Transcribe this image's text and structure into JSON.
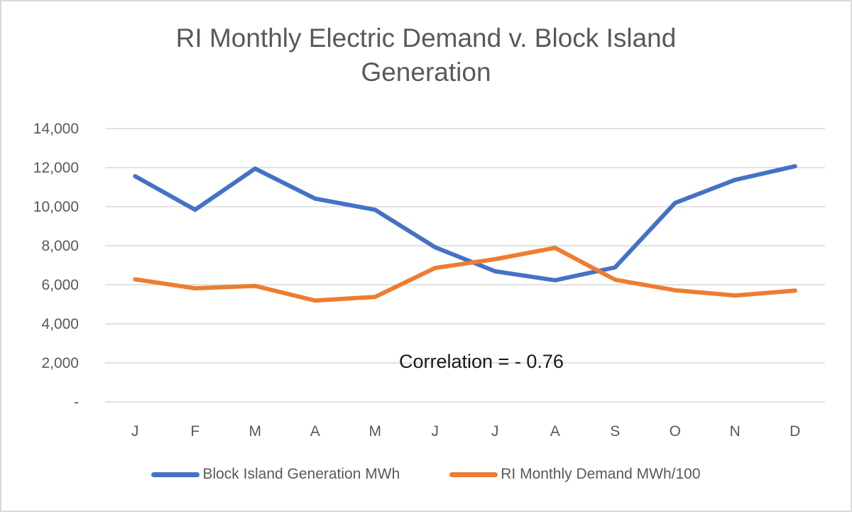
{
  "chart_data": {
    "type": "line",
    "title": "RI Monthly Electric Demand v. Block Island Generation",
    "title_lines": [
      "RI Monthly Electric Demand v. Block Island",
      "Generation"
    ],
    "xlabel": "",
    "ylabel": "",
    "categories": [
      "J",
      "F",
      "M",
      "A",
      "M",
      "J",
      "J",
      "A",
      "S",
      "O",
      "N",
      "D"
    ],
    "ylim": [
      0,
      14000
    ],
    "yticks": [
      0,
      2000,
      4000,
      6000,
      8000,
      10000,
      12000,
      14000
    ],
    "ytick_labels": [
      "-",
      "2,000",
      "4,000",
      "6,000",
      "8,000",
      "10,000",
      "12,000",
      "14,000"
    ],
    "grid": true,
    "legend_position": "bottom",
    "series": [
      {
        "name": "Block Island Generation MWh",
        "color": "#4472c4",
        "values": [
          11560,
          9840,
          11950,
          10410,
          9840,
          7920,
          6690,
          6230,
          6890,
          10190,
          11370,
          12070
        ]
      },
      {
        "name": "RI Monthly Demand MWh/100",
        "color": "#ed7d31",
        "values": [
          6280,
          5820,
          5940,
          5190,
          5380,
          6860,
          7310,
          7890,
          6260,
          5720,
          5450,
          5700
        ]
      }
    ],
    "annotations": [
      {
        "text": "Correlation = - 0.76",
        "x_category_index": 6,
        "y_value": 2000
      }
    ]
  }
}
